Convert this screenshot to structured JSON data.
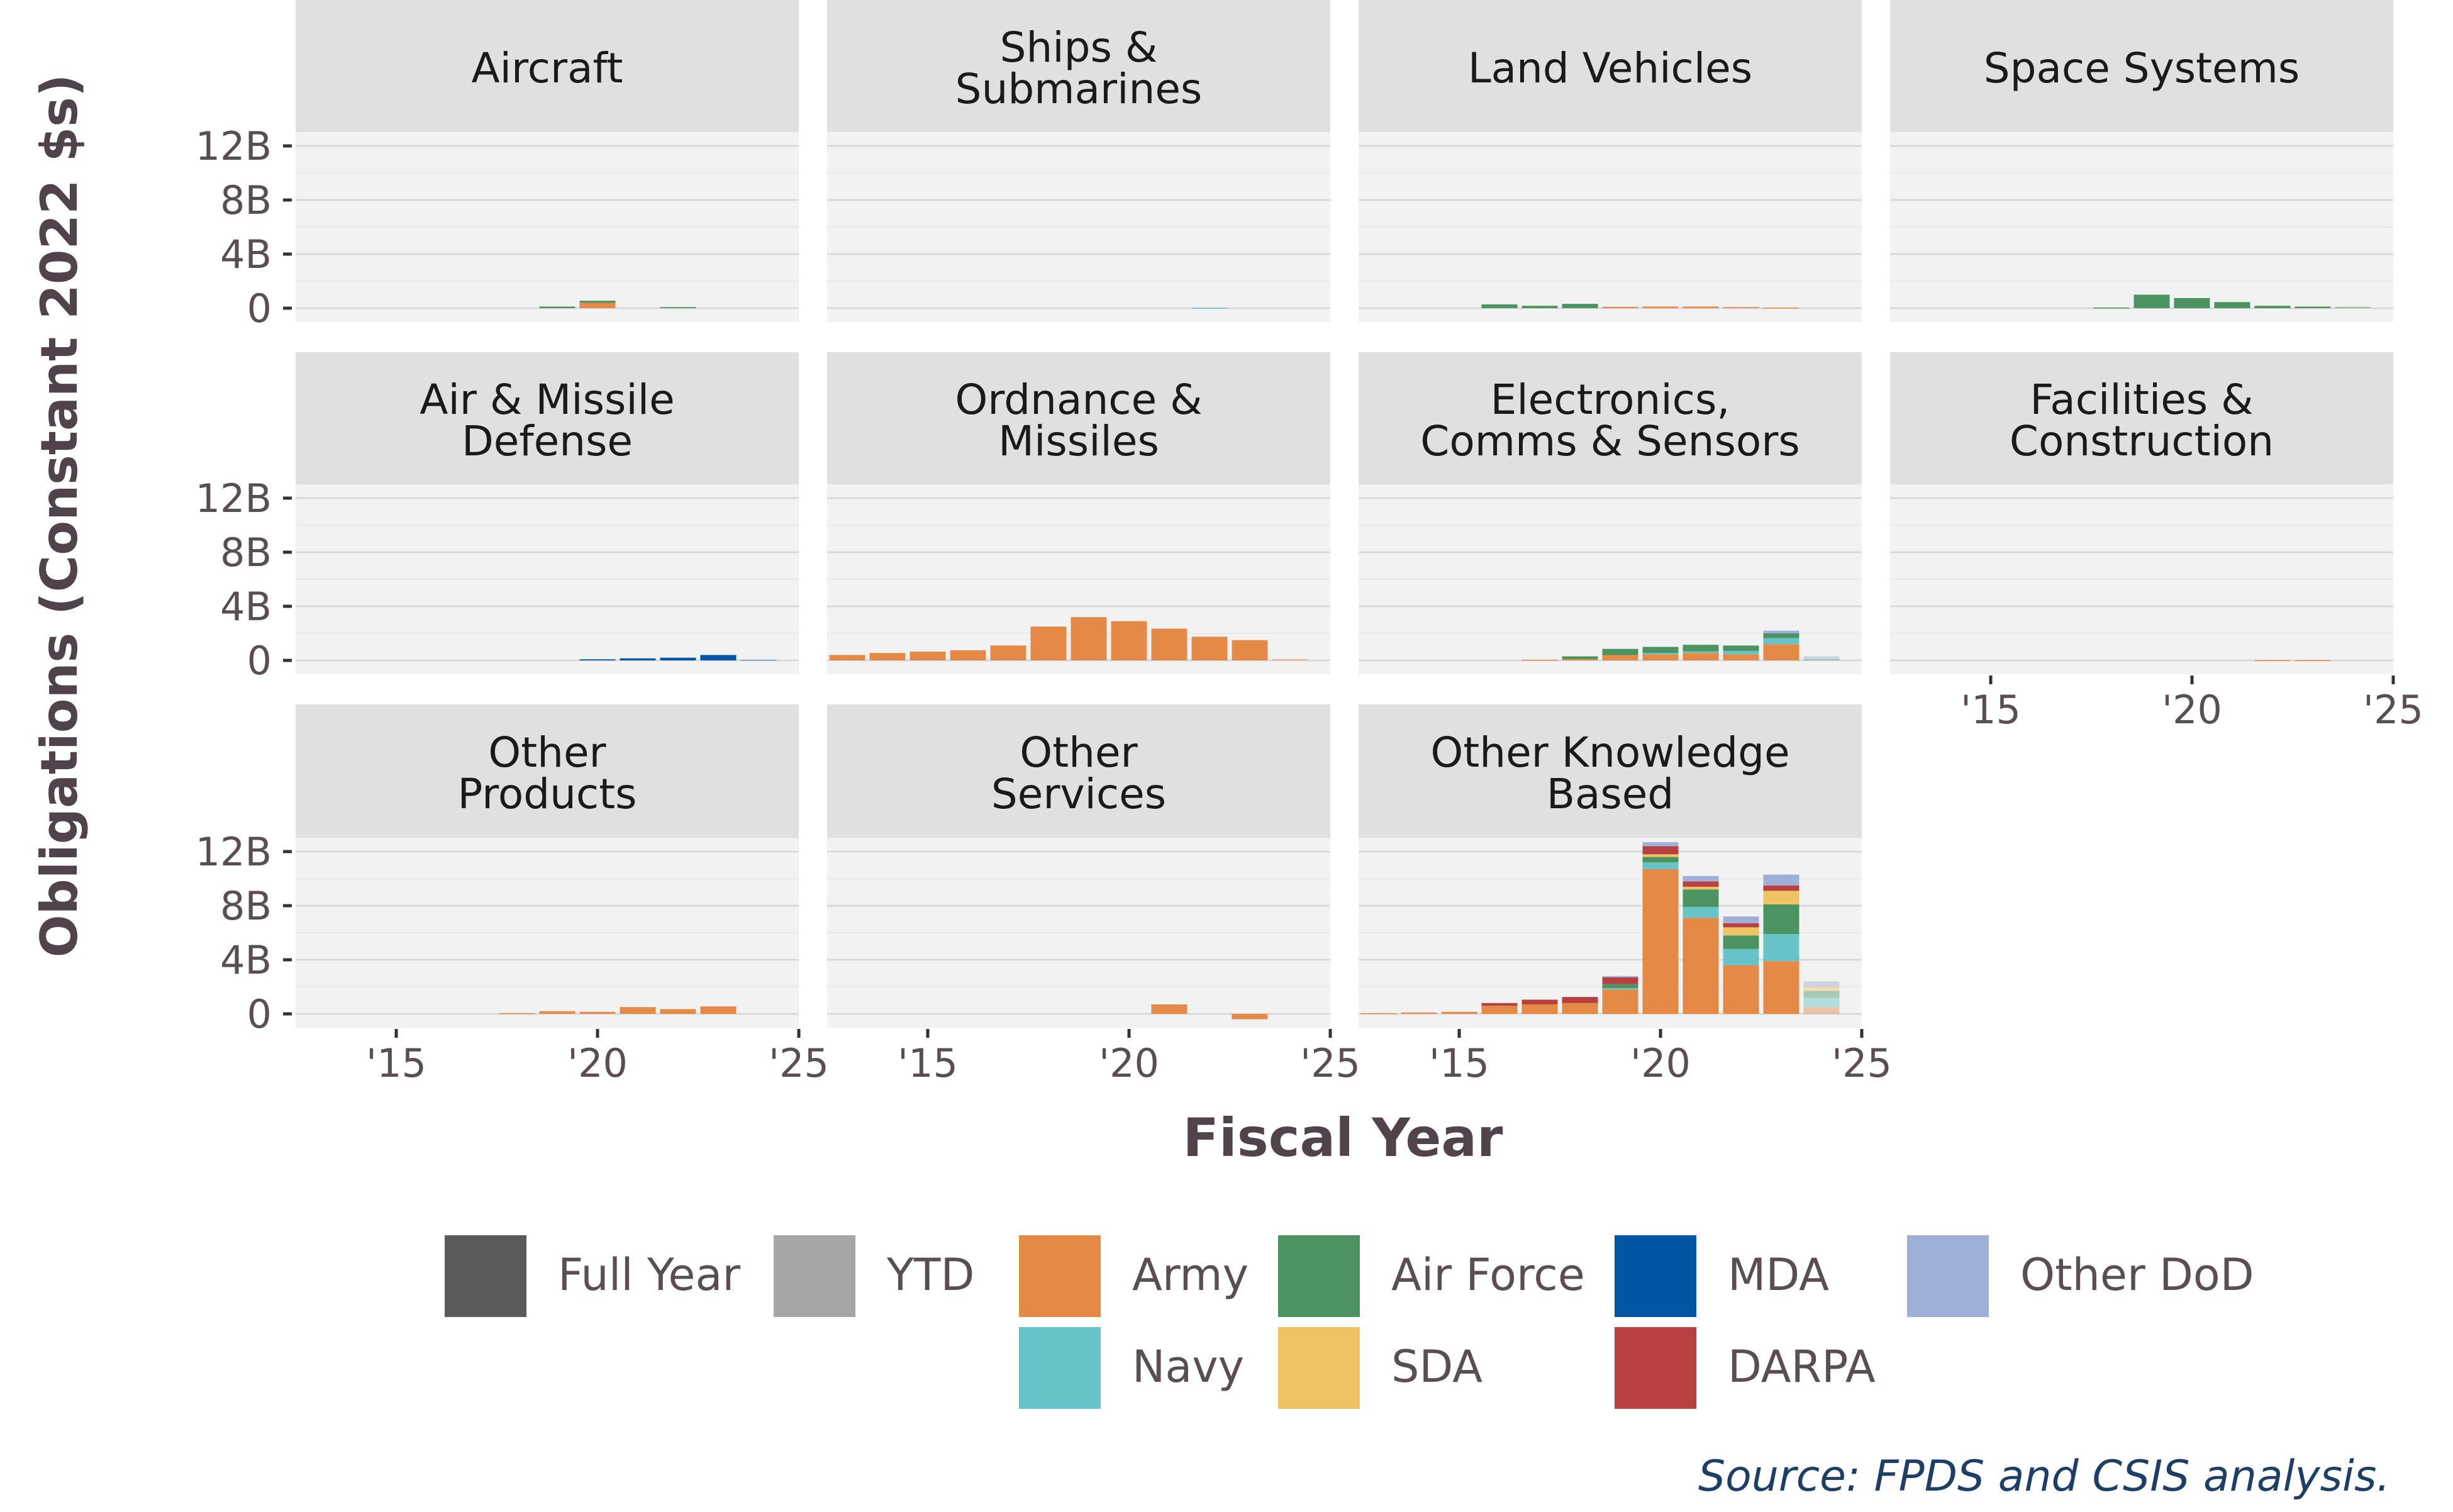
{
  "chart_data": {
    "type": "bar",
    "stacked": true,
    "faceted": true,
    "ylabel": "Obligations (Constant 2022 $s)",
    "xlabel": "Fiscal Year",
    "source": "Source: FPDS and CSIS analysis.",
    "ylim": [
      0,
      13
    ],
    "y_ticks": [
      0,
      4,
      8,
      12
    ],
    "y_tick_labels": [
      "0",
      "4B",
      "8B",
      "12B"
    ],
    "xlim": [
      2012.5,
      2025
    ],
    "x_ticks": [
      2015,
      2020,
      2025
    ],
    "x_tick_labels": [
      "'15",
      "'20",
      "'25"
    ],
    "grid": true,
    "legend_position": "bottom",
    "series_order": [
      "Army",
      "Navy",
      "Air Force",
      "SDA",
      "MDA",
      "DARPA",
      "Other DoD"
    ],
    "legend": [
      {
        "label": "Full Year",
        "color": "#5a5a5a"
      },
      {
        "label": "YTD",
        "color": "#a6a6a6"
      },
      {
        "label": "Army",
        "color": "#e58a46"
      },
      {
        "label": "Air Force",
        "color": "#4b9462"
      },
      {
        "label": "MDA",
        "color": "#0055a4"
      },
      {
        "label": "Other DoD",
        "color": "#9fb0d8"
      },
      {
        "label": "Navy",
        "color": "#66c4c8"
      },
      {
        "label": "SDA",
        "color": "#efc361"
      },
      {
        "label": "DARPA",
        "color": "#b94040"
      }
    ],
    "colors": {
      "Army": "#e58a46",
      "Navy": "#66c4c8",
      "Air Force": "#4b9462",
      "SDA": "#efc361",
      "MDA": "#0055a4",
      "DARPA": "#b94040",
      "Other DoD": "#9fb0d8"
    },
    "ytd_year": 2024,
    "facets": [
      {
        "title": [
          "Aircraft"
        ],
        "bars": {
          "2019": {
            "Air Force": 0.12
          },
          "2020": {
            "Air Force": 0.15,
            "Army": 0.4
          },
          "2022": {
            "Air Force": 0.08
          }
        }
      },
      {
        "title": [
          "Ships &",
          "Submarines"
        ],
        "bars": {
          "2022": {
            "Navy": 0.03
          }
        }
      },
      {
        "title": [
          "Land Vehicles"
        ],
        "bars": {
          "2016": {
            "Air Force": 0.28
          },
          "2017": {
            "Air Force": 0.18
          },
          "2018": {
            "Air Force": 0.32
          },
          "2019": {
            "Army": 0.1
          },
          "2020": {
            "Army": 0.12
          },
          "2021": {
            "Army": 0.12
          },
          "2022": {
            "Army": 0.08
          },
          "2023": {
            "Army": 0.04
          }
        }
      },
      {
        "title": [
          "Space Systems"
        ],
        "bars": {
          "2018": {
            "Air Force": 0.05
          },
          "2019": {
            "Air Force": 1.0
          },
          "2020": {
            "Air Force": 0.75
          },
          "2021": {
            "Air Force": 0.45
          },
          "2022": {
            "Air Force": 0.18
          },
          "2023": {
            "Air Force": 0.12
          },
          "2024": {
            "Air Force": 0.1
          }
        }
      },
      {
        "title": [
          "Air & Missile",
          "Defense"
        ],
        "bars": {
          "2020": {
            "MDA": 0.08
          },
          "2021": {
            "MDA": 0.15
          },
          "2022": {
            "MDA": 0.2
          },
          "2023": {
            "MDA": 0.4
          },
          "2024": {
            "MDA": 0.05
          }
        }
      },
      {
        "title": [
          "Ordnance &",
          "Missiles"
        ],
        "bars": {
          "2013": {
            "Army": 0.4
          },
          "2014": {
            "Army": 0.55
          },
          "2015": {
            "Army": 0.65
          },
          "2016": {
            "Army": 0.75
          },
          "2017": {
            "Army": 1.1
          },
          "2018": {
            "Army": 2.5
          },
          "2019": {
            "Army": 3.2
          },
          "2020": {
            "Army": 2.9
          },
          "2021": {
            "Army": 2.35
          },
          "2022": {
            "Army": 1.75
          },
          "2023": {
            "Army": 1.5
          },
          "2024": {
            "Army": 0.1
          }
        }
      },
      {
        "title": [
          "Electronics,",
          "Comms & Sensors"
        ],
        "bars": {
          "2017": {
            "Army": 0.05
          },
          "2018": {
            "Air Force": 0.2,
            "Army": 0.1
          },
          "2019": {
            "Air Force": 0.45,
            "Army": 0.4
          },
          "2020": {
            "Navy": 0.1,
            "Air Force": 0.45,
            "Army": 0.45
          },
          "2021": {
            "Navy": 0.12,
            "Air Force": 0.48,
            "Army": 0.55
          },
          "2022": {
            "Navy": 0.25,
            "Air Force": 0.4,
            "Army": 0.45
          },
          "2023": {
            "Other DoD": 0.2,
            "Navy": 0.45,
            "Air Force": 0.35,
            "Army": 1.2
          },
          "2024": {
            "Other DoD": 0.2,
            "Air Force": 0.1
          }
        }
      },
      {
        "title": [
          "Facilities &",
          "Construction"
        ],
        "bars": {
          "2022": {
            "Army": 0.02
          },
          "2023": {
            "Army": 0.02
          }
        }
      },
      {
        "title": [
          "Other",
          "Products"
        ],
        "bars": {
          "2018": {
            "Army": 0.05
          },
          "2019": {
            "Army": 0.2
          },
          "2020": {
            "Army": 0.15
          },
          "2021": {
            "Army": 0.5
          },
          "2022": {
            "Army": 0.35
          },
          "2023": {
            "Army": 0.55
          }
        }
      },
      {
        "title": [
          "Other",
          "Services"
        ],
        "bars": {
          "2021": {
            "Army": 0.7
          },
          "2023": {
            "Army": -0.4
          }
        }
      },
      {
        "title": [
          "Other Knowledge",
          "Based"
        ],
        "bars": {
          "2013": {
            "Army": 0.05
          },
          "2014": {
            "Army": 0.1
          },
          "2015": {
            "Army": 0.15
          },
          "2016": {
            "DARPA": 0.2,
            "Army": 0.6
          },
          "2017": {
            "DARPA": 0.35,
            "Army": 0.7
          },
          "2018": {
            "DARPA": 0.45,
            "Army": 0.8
          },
          "2019": {
            "Other DoD": 0.1,
            "DARPA": 0.5,
            "Air Force": 0.3,
            "Navy": 0.1,
            "Army": 1.8
          },
          "2020": {
            "Other DoD": 0.3,
            "DARPA": 0.6,
            "SDA": 0.2,
            "Air Force": 0.4,
            "Navy": 0.5,
            "Army": 10.7
          },
          "2021": {
            "Other DoD": 0.4,
            "DARPA": 0.4,
            "SDA": 0.2,
            "Air Force": 1.3,
            "Navy": 0.8,
            "Army": 7.1
          },
          "2022": {
            "Other DoD": 0.5,
            "DARPA": 0.3,
            "SDA": 0.6,
            "Air Force": 1.0,
            "Navy": 1.2,
            "Army": 3.6
          },
          "2023": {
            "Other DoD": 0.8,
            "DARPA": 0.4,
            "SDA": 1.0,
            "Air Force": 2.2,
            "Navy": 2.0,
            "Army": 3.9
          },
          "2024": {
            "Other DoD": 0.4,
            "SDA": 0.3,
            "Air Force": 0.5,
            "Navy": 0.7,
            "Army": 0.5
          }
        }
      }
    ]
  }
}
